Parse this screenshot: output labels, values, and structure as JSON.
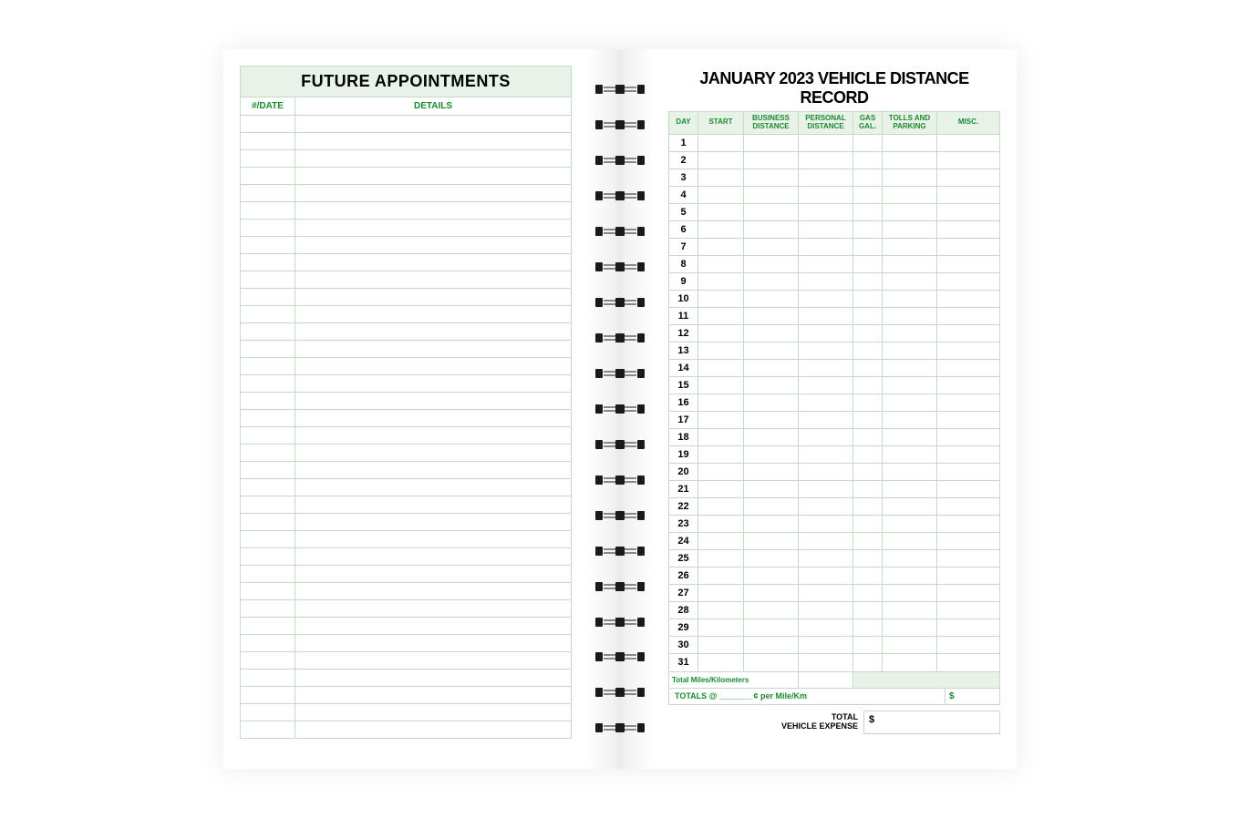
{
  "left": {
    "title": "FUTURE APPOINTMENTS",
    "columns": {
      "date": "#/DATE",
      "details": "DETAILS"
    },
    "row_count": 36
  },
  "right": {
    "title": "JANUARY 2023 VEHICLE DISTANCE RECORD",
    "columns": {
      "day": "DAY",
      "start": "START",
      "business": "BUSINESS DISTANCE",
      "personal": "PERSONAL DISTANCE",
      "gas": "GAS GAL.",
      "tolls": "TOLLS AND PARKING",
      "misc": "MISC."
    },
    "days": [
      1,
      2,
      3,
      4,
      5,
      6,
      7,
      8,
      9,
      10,
      11,
      12,
      13,
      14,
      15,
      16,
      17,
      18,
      19,
      20,
      21,
      22,
      23,
      24,
      25,
      26,
      27,
      28,
      29,
      30,
      31
    ],
    "footer": {
      "total_miles": "Total Miles/Kilometers",
      "totals_line": "TOTALS @ _______ ¢ per Mile/Km",
      "dollar": "$",
      "total_expense_label": "TOTAL\nVEHICLE EXPENSE",
      "total_expense_symbol": "$"
    }
  },
  "spiral": {
    "ring_count": 19
  },
  "colors": {
    "header_bg": "#e9f2e9",
    "line": "#c3dec3",
    "green_text": "#1a8a2d",
    "black": "#000000"
  }
}
